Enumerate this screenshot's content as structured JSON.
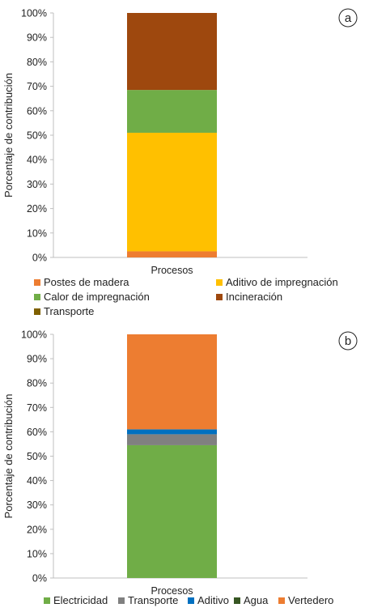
{
  "chart_data": [
    {
      "panel": "a",
      "type": "bar",
      "stacked": true,
      "percent": true,
      "categories": [
        "Procesos"
      ],
      "ylabel": "Porcentaje de contribución",
      "ylim": [
        0,
        100
      ],
      "yticks": [
        "0%",
        "10%",
        "20%",
        "30%",
        "40%",
        "50%",
        "60%",
        "70%",
        "80%",
        "90%",
        "100%"
      ],
      "grid": false,
      "legend": "bottom",
      "series": [
        {
          "name": "Postes de madera",
          "values": [
            2.5
          ],
          "color": "#ED7D31"
        },
        {
          "name": "Aditivo de impregnación",
          "values": [
            48.5
          ],
          "color": "#FFC000"
        },
        {
          "name": "Calor de impregnación",
          "values": [
            17.5
          ],
          "color": "#70AD47"
        },
        {
          "name": "Incineración",
          "values": [
            31.5
          ],
          "color": "#9E480E"
        },
        {
          "name": "Transporte",
          "values": [
            0
          ],
          "color": "#7F6000"
        }
      ]
    },
    {
      "panel": "b",
      "type": "bar",
      "stacked": true,
      "percent": true,
      "categories": [
        "Procesos"
      ],
      "ylabel": "Porcentaje de contribución",
      "ylim": [
        0,
        100
      ],
      "yticks": [
        "0%",
        "10%",
        "20%",
        "30%",
        "40%",
        "50%",
        "60%",
        "70%",
        "80%",
        "90%",
        "100%"
      ],
      "grid": false,
      "legend": "bottom",
      "series": [
        {
          "name": "Electricidad",
          "values": [
            54.5
          ],
          "color": "#70AD47"
        },
        {
          "name": "Transporte",
          "values": [
            4.5
          ],
          "color": "#808080"
        },
        {
          "name": "Aditivo",
          "values": [
            2
          ],
          "color": "#0070C0"
        },
        {
          "name": "Agua",
          "values": [
            0
          ],
          "color": "#375623"
        },
        {
          "name": "Vertedero",
          "values": [
            39
          ],
          "color": "#ED7D31"
        }
      ]
    }
  ]
}
